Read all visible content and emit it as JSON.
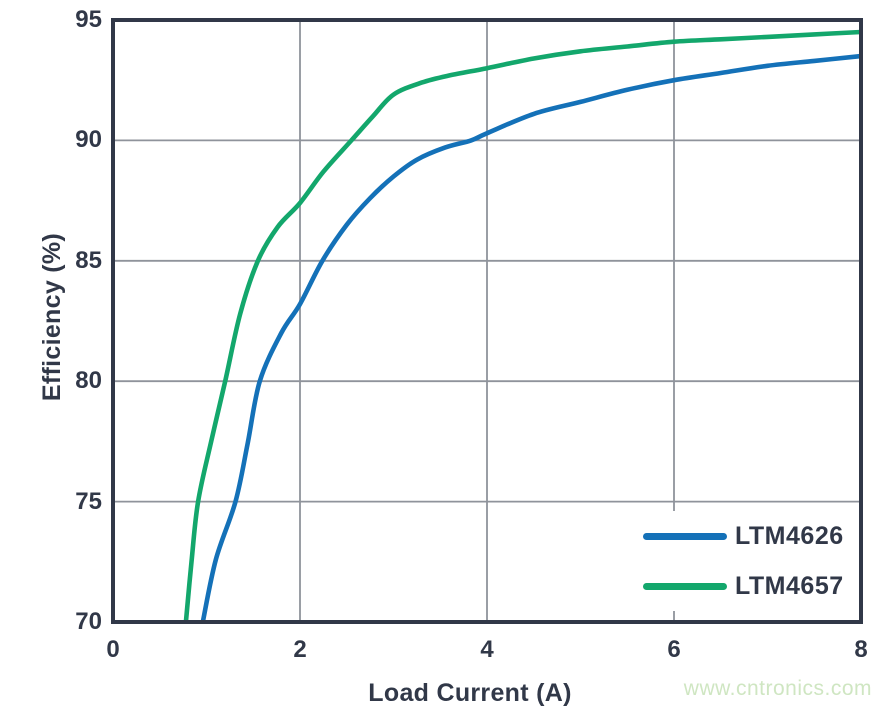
{
  "chart_data": {
    "type": "line",
    "title": "",
    "xlabel": "Load Current (A)",
    "ylabel": "Efficiency (%)",
    "xlim": [
      0,
      8
    ],
    "ylim": [
      70,
      95
    ],
    "xticks": [
      0,
      2,
      4,
      6,
      8
    ],
    "yticks": [
      70,
      75,
      80,
      85,
      90,
      95
    ],
    "grid": true,
    "legend_position": "lower-right",
    "series": [
      {
        "name": "LTM4626",
        "color": "#1471b8",
        "points": [
          [
            0.96,
            70
          ],
          [
            1.1,
            72.6
          ],
          [
            1.31,
            75
          ],
          [
            1.44,
            77.4
          ],
          [
            1.57,
            80
          ],
          [
            1.8,
            82.0
          ],
          [
            2.0,
            83.2
          ],
          [
            2.24,
            85
          ],
          [
            2.5,
            86.5
          ],
          [
            2.75,
            87.6
          ],
          [
            3.0,
            88.5
          ],
          [
            3.25,
            89.2
          ],
          [
            3.55,
            89.7
          ],
          [
            3.83,
            90
          ],
          [
            4.0,
            90.3
          ],
          [
            4.5,
            91.1
          ],
          [
            5.0,
            91.6
          ],
          [
            5.5,
            92.1
          ],
          [
            6.0,
            92.5
          ],
          [
            6.5,
            92.8
          ],
          [
            7.0,
            93.1
          ],
          [
            7.5,
            93.3
          ],
          [
            8.0,
            93.5
          ]
        ]
      },
      {
        "name": "LTM4657",
        "color": "#13a76c",
        "points": [
          [
            0.78,
            70
          ],
          [
            0.84,
            72.5
          ],
          [
            0.91,
            75
          ],
          [
            1.05,
            77.5
          ],
          [
            1.2,
            80
          ],
          [
            1.36,
            82.8
          ],
          [
            1.55,
            85
          ],
          [
            1.76,
            86.4
          ],
          [
            2.0,
            87.4
          ],
          [
            2.25,
            88.7
          ],
          [
            2.55,
            90
          ],
          [
            2.78,
            91.0
          ],
          [
            3.0,
            91.9
          ],
          [
            3.3,
            92.4
          ],
          [
            3.6,
            92.7
          ],
          [
            4.0,
            93.0
          ],
          [
            4.5,
            93.4
          ],
          [
            5.0,
            93.7
          ],
          [
            5.5,
            93.9
          ],
          [
            6.0,
            94.1
          ],
          [
            6.5,
            94.2
          ],
          [
            7.0,
            94.3
          ],
          [
            7.5,
            94.4
          ],
          [
            8.0,
            94.5
          ]
        ]
      }
    ]
  },
  "watermark": {
    "text": "www.cntronics.com",
    "color": "#cfe6c2"
  },
  "colors": {
    "axis": "#313848",
    "grid": "#8f939b",
    "background": "#ffffff"
  }
}
